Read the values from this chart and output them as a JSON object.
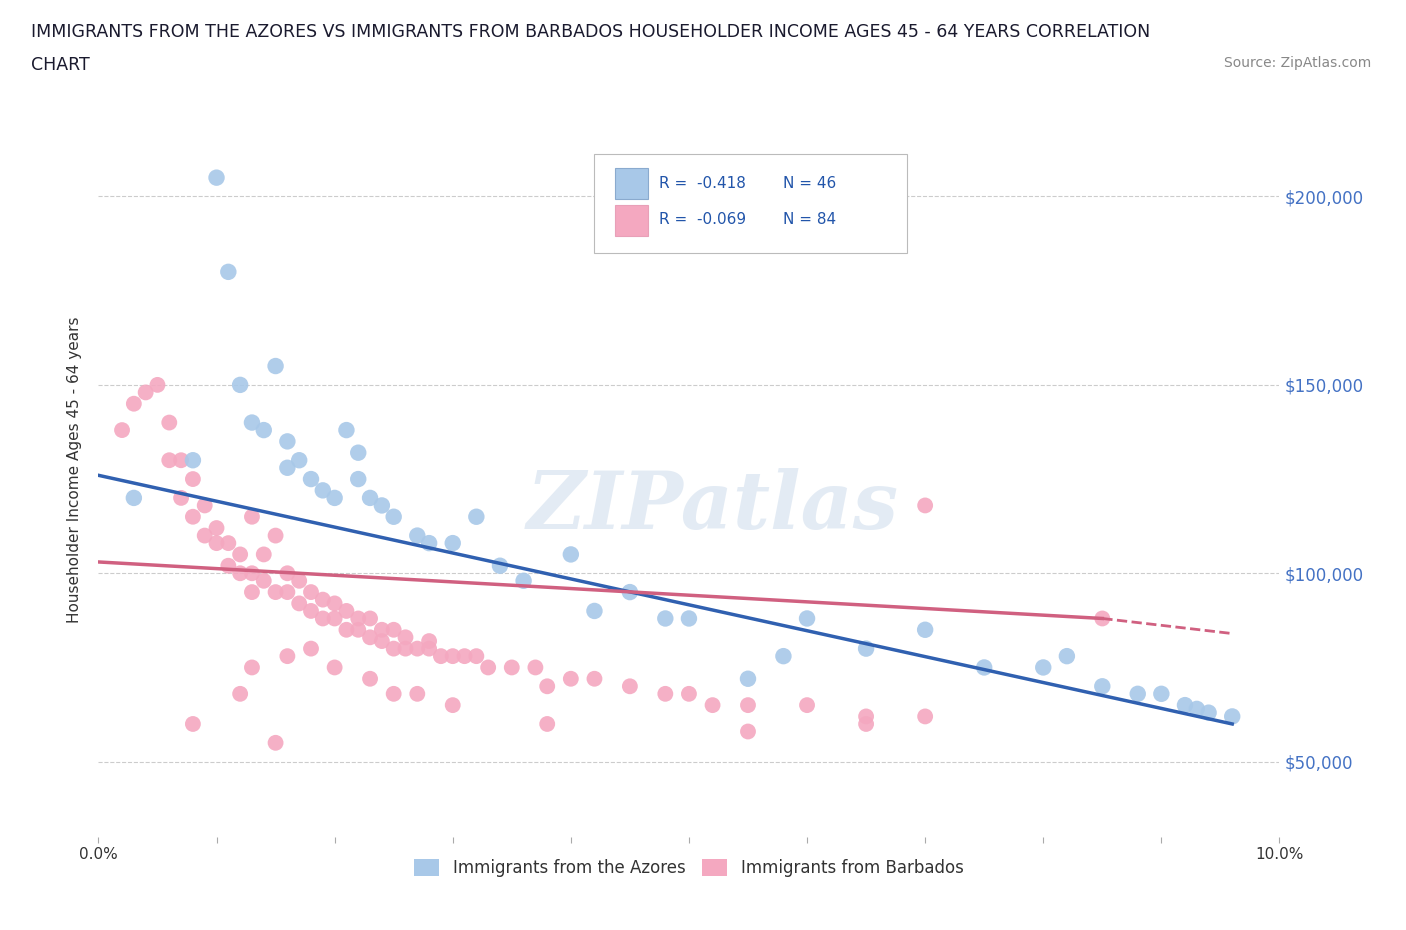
{
  "title_line1": "IMMIGRANTS FROM THE AZORES VS IMMIGRANTS FROM BARBADOS HOUSEHOLDER INCOME AGES 45 - 64 YEARS CORRELATION",
  "title_line2": "CHART",
  "source": "Source: ZipAtlas.com",
  "ylabel": "Householder Income Ages 45 - 64 years",
  "watermark": "ZIPatlas",
  "legend_r1": "R =  -0.418",
  "legend_n1": "N = 46",
  "legend_r2": "R =  -0.069",
  "legend_n2": "N = 84",
  "azores_color": "#a8c8e8",
  "barbados_color": "#f4a8c0",
  "trendline_azores": "#3060b0",
  "trendline_barbados": "#d06080",
  "xlim": [
    0.0,
    0.1
  ],
  "ylim": [
    30000,
    225000
  ],
  "yticks": [
    50000,
    100000,
    150000,
    200000
  ],
  "ytick_labels": [
    "$50,000",
    "$100,000",
    "$150,000",
    "$200,000"
  ],
  "azores_x": [
    0.003,
    0.008,
    0.01,
    0.011,
    0.012,
    0.013,
    0.014,
    0.015,
    0.016,
    0.016,
    0.017,
    0.018,
    0.019,
    0.02,
    0.021,
    0.022,
    0.022,
    0.023,
    0.024,
    0.025,
    0.027,
    0.028,
    0.03,
    0.032,
    0.034,
    0.036,
    0.04,
    0.042,
    0.045,
    0.048,
    0.05,
    0.055,
    0.058,
    0.06,
    0.065,
    0.07,
    0.075,
    0.08,
    0.082,
    0.085,
    0.088,
    0.09,
    0.092,
    0.093,
    0.094,
    0.096
  ],
  "azores_y": [
    120000,
    130000,
    205000,
    180000,
    150000,
    140000,
    138000,
    155000,
    135000,
    128000,
    130000,
    125000,
    122000,
    120000,
    138000,
    132000,
    125000,
    120000,
    118000,
    115000,
    110000,
    108000,
    108000,
    115000,
    102000,
    98000,
    105000,
    90000,
    95000,
    88000,
    88000,
    72000,
    78000,
    88000,
    80000,
    85000,
    75000,
    75000,
    78000,
    70000,
    68000,
    68000,
    65000,
    64000,
    63000,
    62000
  ],
  "barbados_x": [
    0.002,
    0.003,
    0.004,
    0.005,
    0.006,
    0.006,
    0.007,
    0.007,
    0.008,
    0.008,
    0.009,
    0.009,
    0.01,
    0.01,
    0.011,
    0.011,
    0.012,
    0.012,
    0.013,
    0.013,
    0.013,
    0.014,
    0.014,
    0.015,
    0.015,
    0.016,
    0.016,
    0.017,
    0.017,
    0.018,
    0.018,
    0.019,
    0.019,
    0.02,
    0.02,
    0.021,
    0.021,
    0.022,
    0.022,
    0.023,
    0.023,
    0.024,
    0.024,
    0.025,
    0.025,
    0.026,
    0.026,
    0.027,
    0.028,
    0.028,
    0.029,
    0.03,
    0.031,
    0.032,
    0.033,
    0.035,
    0.037,
    0.038,
    0.04,
    0.042,
    0.045,
    0.048,
    0.05,
    0.052,
    0.055,
    0.06,
    0.065,
    0.07,
    0.013,
    0.016,
    0.018,
    0.02,
    0.023,
    0.025,
    0.027,
    0.03,
    0.038,
    0.012,
    0.015,
    0.008,
    0.07,
    0.065,
    0.055,
    0.085
  ],
  "barbados_y": [
    138000,
    145000,
    148000,
    150000,
    140000,
    130000,
    130000,
    120000,
    125000,
    115000,
    118000,
    110000,
    112000,
    108000,
    108000,
    102000,
    105000,
    100000,
    100000,
    95000,
    115000,
    98000,
    105000,
    95000,
    110000,
    95000,
    100000,
    92000,
    98000,
    90000,
    95000,
    88000,
    93000,
    88000,
    92000,
    85000,
    90000,
    85000,
    88000,
    83000,
    88000,
    82000,
    85000,
    80000,
    85000,
    80000,
    83000,
    80000,
    80000,
    82000,
    78000,
    78000,
    78000,
    78000,
    75000,
    75000,
    75000,
    70000,
    72000,
    72000,
    70000,
    68000,
    68000,
    65000,
    65000,
    65000,
    62000,
    62000,
    75000,
    78000,
    80000,
    75000,
    72000,
    68000,
    68000,
    65000,
    60000,
    68000,
    55000,
    60000,
    118000,
    60000,
    58000,
    88000
  ],
  "trendline_azores_x0": 0.0,
  "trendline_azores_y0": 126000,
  "trendline_azores_x1": 0.096,
  "trendline_azores_y1": 60000,
  "trendline_barbados_x0": 0.0,
  "trendline_barbados_y0": 103000,
  "trendline_barbados_x1": 0.085,
  "trendline_barbados_y1": 88000,
  "trendline_barbados_dash_x1": 0.096,
  "trendline_barbados_dash_y1": 84000
}
